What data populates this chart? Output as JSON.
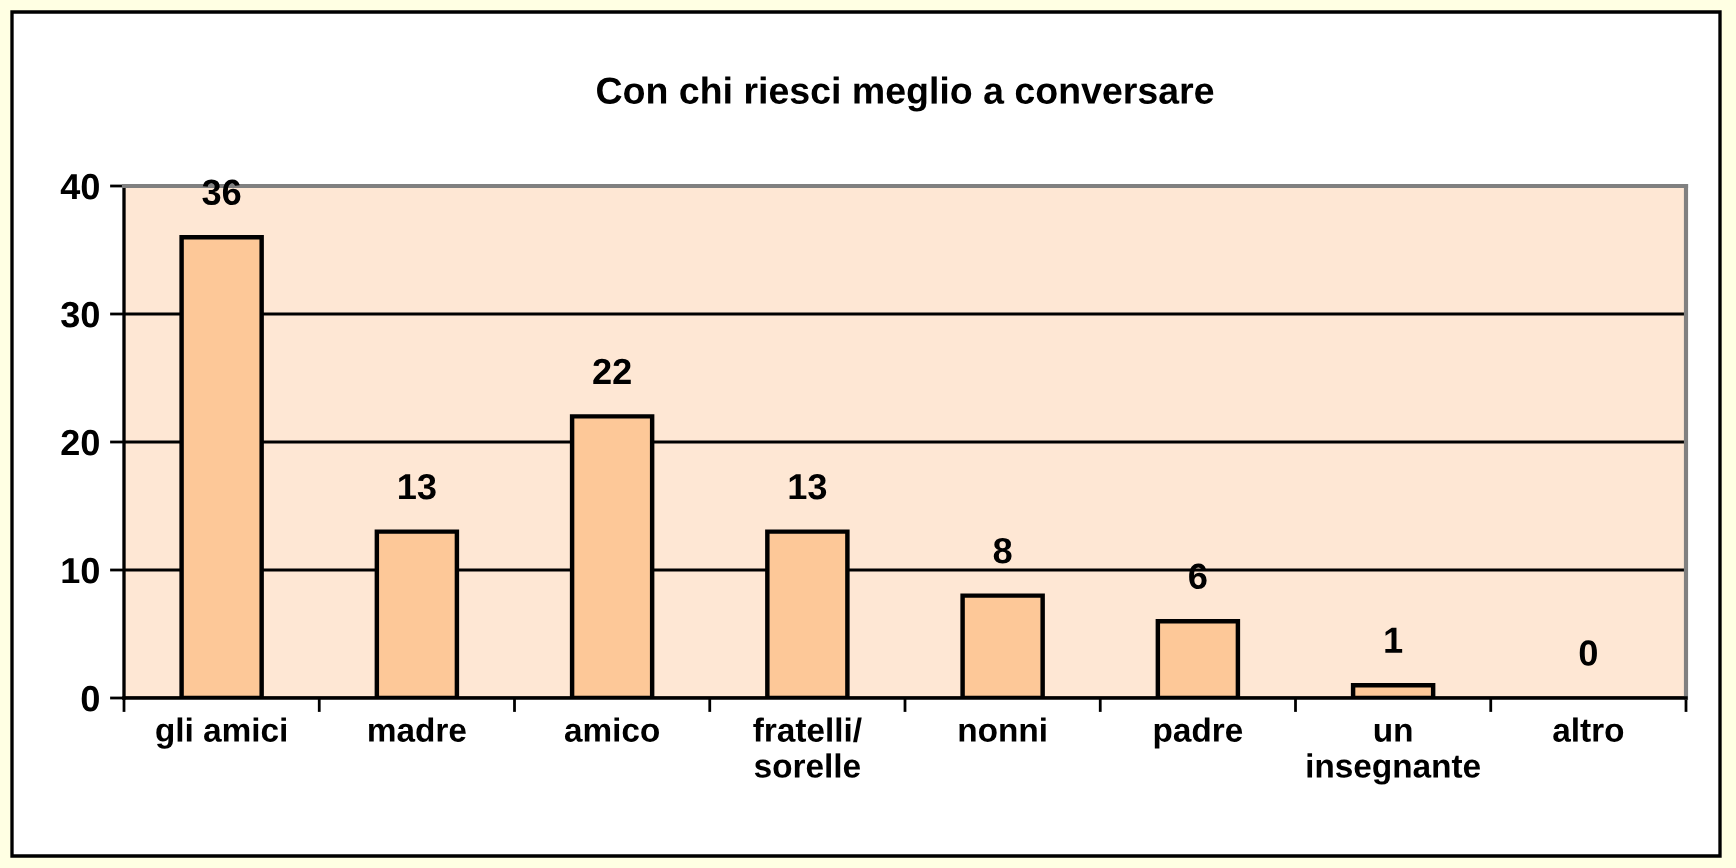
{
  "chart_data": {
    "type": "bar",
    "title": "Con chi riesci meglio a conversare",
    "categories": [
      "gli amici",
      "madre",
      "amico",
      "fratelli/\nsorelle",
      "nonni",
      "padre",
      "un\ninsegnante",
      "altro"
    ],
    "values": [
      36,
      13,
      22,
      13,
      8,
      6,
      1,
      0
    ],
    "color": "#fdc898",
    "ylim": [
      0,
      40
    ],
    "yticks": [
      0,
      10,
      20,
      30,
      40
    ],
    "grid": "y",
    "data_labels": true
  }
}
